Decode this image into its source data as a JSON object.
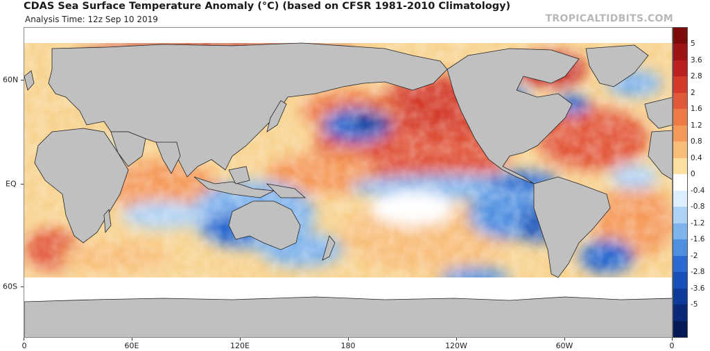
{
  "header": {
    "title": "CDAS Sea Surface Temperature Anomaly (°C) (based on CFSR 1981-2010 Climatology)",
    "subtitle": "Analysis Time: 12z Sep 10 2019",
    "watermark": "TROPICALTIDBITS.COM"
  },
  "map": {
    "lat_labels": [
      "60N",
      "EQ",
      "60S"
    ],
    "lon_labels": [
      "0",
      "60E",
      "120E",
      "180",
      "120W",
      "60W",
      "0"
    ],
    "land_color": "#c0c0c0",
    "ice_color": "#ffffff"
  },
  "colorbar": {
    "labels": [
      "5",
      "3.6",
      "2.8",
      "2",
      "1.6",
      "1.2",
      "0.8",
      "0.4",
      "0",
      "-0.4",
      "-0.8",
      "-1.2",
      "-1.6",
      "-2",
      "-2.8",
      "-3.6",
      "-5"
    ],
    "colors": [
      "#7d0a0a",
      "#9e1414",
      "#bb2020",
      "#d33a2c",
      "#e2583a",
      "#ee7a48",
      "#f59a5a",
      "#f8bd78",
      "#fde0a2",
      "#ffffff",
      "#ddeeff",
      "#aed2f6",
      "#7fb3ec",
      "#4f8fe0",
      "#2b6ad0",
      "#184fb8",
      "#0e3a99",
      "#0a2a78",
      "#061a55"
    ]
  },
  "chart_data": {
    "type": "heatmap",
    "title": "CDAS Sea Surface Temperature Anomaly (°C) (based on CFSR 1981-2010 Climatology)",
    "units": "°C",
    "x_axis": [
      "0",
      "60E",
      "120E",
      "180",
      "120W",
      "60W",
      "0"
    ],
    "y_axis": [
      "60N",
      "EQ",
      "60S"
    ],
    "color_scale": [
      5,
      3.6,
      2.8,
      2,
      1.6,
      1.2,
      0.8,
      0.4,
      0,
      -0.4,
      -0.8,
      -1.2,
      -1.6,
      -2,
      -2.8,
      -3.6,
      -5
    ],
    "legend": "right"
  }
}
